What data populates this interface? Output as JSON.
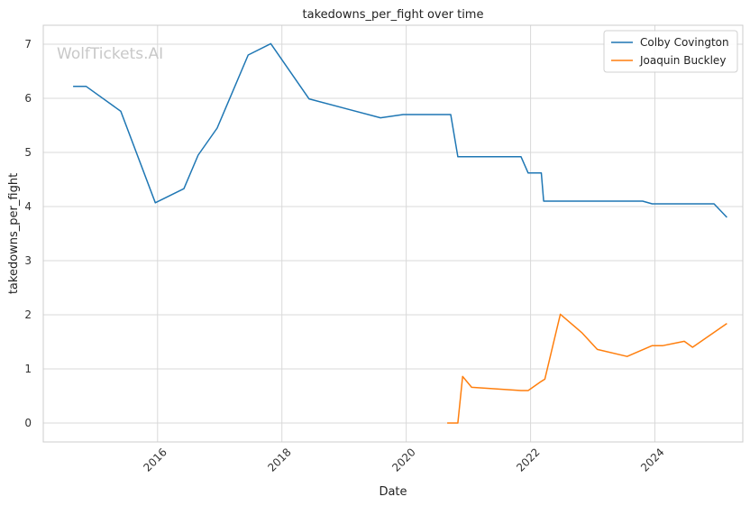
{
  "watermark": "WolfTickets.AI",
  "chart_data": {
    "type": "line",
    "title": "takedowns_per_fight over time",
    "xlabel": "Date",
    "ylabel": "takedowns_per_fight",
    "x_ticks": [
      "2016",
      "2018",
      "2020",
      "2022",
      "2024"
    ],
    "y_ticks": [
      0,
      1,
      2,
      3,
      4,
      5,
      6,
      7
    ],
    "xlim": [
      "2014-03-01",
      "2025-06-01"
    ],
    "ylim": [
      -0.35,
      7.35
    ],
    "grid": true,
    "legend_position": "top-right",
    "series": [
      {
        "name": "Colby Covington",
        "color": "#1f77b4",
        "points": [
          [
            "2014-08-23",
            6.22
          ],
          [
            "2014-11-08",
            6.22
          ],
          [
            "2015-05-30",
            5.76
          ],
          [
            "2015-12-19",
            4.07
          ],
          [
            "2016-06-04",
            4.33
          ],
          [
            "2016-08-27",
            4.95
          ],
          [
            "2016-12-17",
            5.45
          ],
          [
            "2017-06-17",
            6.8
          ],
          [
            "2017-10-28",
            7.01
          ],
          [
            "2018-06-09",
            5.99
          ],
          [
            "2019-08-03",
            5.64
          ],
          [
            "2019-12-14",
            5.7
          ],
          [
            "2020-09-19",
            5.7
          ],
          [
            "2020-10-31",
            4.92
          ],
          [
            "2021-11-06",
            4.92
          ],
          [
            "2021-12-18",
            4.62
          ],
          [
            "2022-03-05",
            4.62
          ],
          [
            "2022-03-19",
            4.1
          ],
          [
            "2023-10-21",
            4.1
          ],
          [
            "2023-12-16",
            4.05
          ],
          [
            "2024-12-14",
            4.05
          ],
          [
            "2025-02-28",
            3.8
          ]
        ]
      },
      {
        "name": "Joaquin Buckley",
        "color": "#ff7f0e",
        "points": [
          [
            "2020-08-29",
            0.0
          ],
          [
            "2020-10-31",
            0.0
          ],
          [
            "2020-11-28",
            0.86
          ],
          [
            "2021-01-20",
            0.66
          ],
          [
            "2021-11-06",
            0.6
          ],
          [
            "2021-12-18",
            0.6
          ],
          [
            "2022-03-05",
            0.77
          ],
          [
            "2022-03-26",
            0.81
          ],
          [
            "2022-06-25",
            2.01
          ],
          [
            "2022-10-29",
            1.67
          ],
          [
            "2023-01-28",
            1.36
          ],
          [
            "2023-07-22",
            1.23
          ],
          [
            "2023-12-16",
            1.43
          ],
          [
            "2024-02-17",
            1.43
          ],
          [
            "2024-06-22",
            1.51
          ],
          [
            "2024-08-10",
            1.4
          ],
          [
            "2025-02-28",
            1.84
          ]
        ]
      }
    ]
  }
}
